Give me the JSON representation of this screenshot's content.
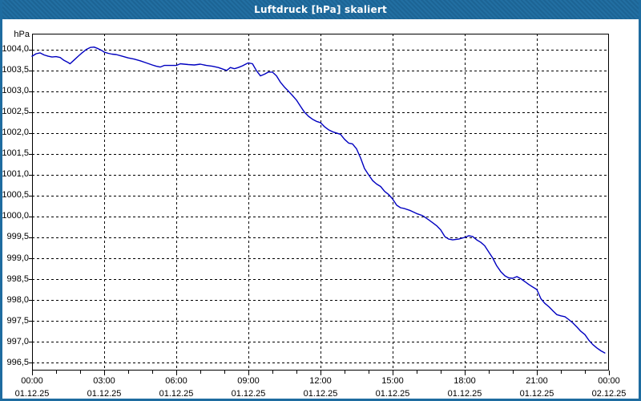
{
  "window": {
    "title": "Luftdruck [hPa] skaliert",
    "titlebar_color": "#1e6ca0",
    "border_color": "#1e6ca0",
    "background": "#ffffff"
  },
  "chart_data": {
    "type": "line",
    "title": "Luftdruck [hPa] skaliert",
    "unit_label": "hPa",
    "grid": "dashed-black",
    "grid_color": "#000000",
    "axis_color": "#000000",
    "x_axis": {
      "range_hours": [
        0,
        24
      ],
      "minor_tick_every_hours": 1,
      "gridlines_at_hours": [
        3,
        6,
        9,
        12,
        15,
        18,
        21
      ],
      "major_ticks": [
        {
          "hour": 0,
          "time": "00:00",
          "date": "01.12.25"
        },
        {
          "hour": 3,
          "time": "03:00",
          "date": "01.12.25"
        },
        {
          "hour": 6,
          "time": "06:00",
          "date": "01.12.25"
        },
        {
          "hour": 9,
          "time": "09:00",
          "date": "01.12.25"
        },
        {
          "hour": 12,
          "time": "12:00",
          "date": "01.12.25"
        },
        {
          "hour": 15,
          "time": "15:00",
          "date": "01.12.25"
        },
        {
          "hour": 18,
          "time": "18:00",
          "date": "01.12.25"
        },
        {
          "hour": 21,
          "time": "21:00",
          "date": "01.12.25"
        },
        {
          "hour": 24,
          "time": "00:00",
          "date": "02.12.25"
        }
      ]
    },
    "y_axis": {
      "min": 996.31,
      "max": 1004.38,
      "ticks": [
        1004.0,
        1003.5,
        1003.0,
        1002.5,
        1002.0,
        1001.5,
        1001.0,
        1000.5,
        1000.0,
        999.5,
        999.0,
        998.5,
        998.0,
        997.5,
        997.0,
        996.5
      ],
      "tick_labels": [
        "1004,0",
        "1003,5",
        "1003,0",
        "1002,5",
        "1002,0",
        "1001,5",
        "1001,0",
        "1000,5",
        "1000,0",
        "999,5",
        "999,0",
        "998,5",
        "998,0",
        "997,5",
        "997,0",
        "996,5"
      ]
    },
    "series": [
      {
        "name": "Luftdruck",
        "color": "#0000c0",
        "points": [
          [
            0.0,
            1003.84
          ],
          [
            0.17,
            1003.9
          ],
          [
            0.33,
            1003.92
          ],
          [
            0.5,
            1003.87
          ],
          [
            0.67,
            1003.84
          ],
          [
            0.83,
            1003.82
          ],
          [
            1.0,
            1003.83
          ],
          [
            1.17,
            1003.81
          ],
          [
            1.33,
            1003.74
          ],
          [
            1.5,
            1003.69
          ],
          [
            1.58,
            1003.66
          ],
          [
            1.75,
            1003.75
          ],
          [
            1.92,
            1003.84
          ],
          [
            2.08,
            1003.92
          ],
          [
            2.25,
            1004.0
          ],
          [
            2.42,
            1004.05
          ],
          [
            2.58,
            1004.06
          ],
          [
            2.75,
            1004.02
          ],
          [
            2.92,
            1003.97
          ],
          [
            3.0,
            1003.94
          ],
          [
            3.17,
            1003.91
          ],
          [
            3.33,
            1003.89
          ],
          [
            3.5,
            1003.88
          ],
          [
            3.75,
            1003.84
          ],
          [
            4.0,
            1003.8
          ],
          [
            4.25,
            1003.77
          ],
          [
            4.5,
            1003.73
          ],
          [
            4.75,
            1003.68
          ],
          [
            5.0,
            1003.63
          ],
          [
            5.17,
            1003.6
          ],
          [
            5.33,
            1003.58
          ],
          [
            5.5,
            1003.62
          ],
          [
            5.75,
            1003.62
          ],
          [
            6.0,
            1003.62
          ],
          [
            6.17,
            1003.66
          ],
          [
            6.33,
            1003.65
          ],
          [
            6.5,
            1003.64
          ],
          [
            6.75,
            1003.63
          ],
          [
            7.0,
            1003.65
          ],
          [
            7.25,
            1003.62
          ],
          [
            7.5,
            1003.6
          ],
          [
            7.75,
            1003.57
          ],
          [
            8.0,
            1003.52
          ],
          [
            8.1,
            1003.5
          ],
          [
            8.25,
            1003.57
          ],
          [
            8.42,
            1003.54
          ],
          [
            8.58,
            1003.57
          ],
          [
            8.75,
            1003.61
          ],
          [
            8.92,
            1003.66
          ],
          [
            9.0,
            1003.68
          ],
          [
            9.17,
            1003.66
          ],
          [
            9.33,
            1003.5
          ],
          [
            9.5,
            1003.37
          ],
          [
            9.67,
            1003.41
          ],
          [
            9.83,
            1003.46
          ],
          [
            10.0,
            1003.46
          ],
          [
            10.17,
            1003.37
          ],
          [
            10.33,
            1003.22
          ],
          [
            10.5,
            1003.1
          ],
          [
            10.67,
            1003.0
          ],
          [
            10.83,
            1002.9
          ],
          [
            11.0,
            1002.79
          ],
          [
            11.17,
            1002.64
          ],
          [
            11.33,
            1002.5
          ],
          [
            11.5,
            1002.4
          ],
          [
            11.67,
            1002.33
          ],
          [
            11.83,
            1002.28
          ],
          [
            12.0,
            1002.25
          ],
          [
            12.17,
            1002.15
          ],
          [
            12.33,
            1002.08
          ],
          [
            12.5,
            1002.03
          ],
          [
            12.67,
            1002.0
          ],
          [
            12.83,
            1001.97
          ],
          [
            13.0,
            1001.85
          ],
          [
            13.17,
            1001.76
          ],
          [
            13.33,
            1001.74
          ],
          [
            13.5,
            1001.62
          ],
          [
            13.67,
            1001.4
          ],
          [
            13.83,
            1001.15
          ],
          [
            14.0,
            1001.0
          ],
          [
            14.17,
            1000.86
          ],
          [
            14.33,
            1000.78
          ],
          [
            14.5,
            1000.72
          ],
          [
            14.67,
            1000.6
          ],
          [
            14.83,
            1000.53
          ],
          [
            15.0,
            1000.42
          ],
          [
            15.17,
            1000.27
          ],
          [
            15.33,
            1000.21
          ],
          [
            15.5,
            1000.19
          ],
          [
            15.75,
            1000.14
          ],
          [
            16.0,
            1000.07
          ],
          [
            16.25,
            1000.02
          ],
          [
            16.5,
            999.92
          ],
          [
            16.67,
            999.85
          ],
          [
            16.83,
            999.78
          ],
          [
            17.0,
            999.68
          ],
          [
            17.17,
            999.52
          ],
          [
            17.33,
            999.46
          ],
          [
            17.5,
            999.44
          ],
          [
            17.75,
            999.46
          ],
          [
            18.0,
            999.5
          ],
          [
            18.17,
            999.54
          ],
          [
            18.33,
            999.52
          ],
          [
            18.5,
            999.44
          ],
          [
            18.67,
            999.38
          ],
          [
            18.83,
            999.3
          ],
          [
            19.0,
            999.15
          ],
          [
            19.17,
            999.0
          ],
          [
            19.33,
            998.82
          ],
          [
            19.5,
            998.68
          ],
          [
            19.67,
            998.58
          ],
          [
            19.83,
            998.53
          ],
          [
            20.0,
            998.52
          ],
          [
            20.17,
            998.56
          ],
          [
            20.33,
            998.51
          ],
          [
            20.5,
            998.44
          ],
          [
            20.67,
            998.37
          ],
          [
            20.83,
            998.31
          ],
          [
            21.0,
            998.25
          ],
          [
            21.17,
            998.03
          ],
          [
            21.33,
            997.92
          ],
          [
            21.5,
            997.84
          ],
          [
            21.67,
            997.74
          ],
          [
            21.83,
            997.65
          ],
          [
            22.0,
            997.62
          ],
          [
            22.17,
            997.6
          ],
          [
            22.33,
            997.53
          ],
          [
            22.5,
            997.45
          ],
          [
            22.67,
            997.35
          ],
          [
            22.83,
            997.25
          ],
          [
            23.0,
            997.17
          ],
          [
            23.17,
            997.03
          ],
          [
            23.33,
            996.93
          ],
          [
            23.5,
            996.85
          ],
          [
            23.67,
            996.78
          ],
          [
            23.83,
            996.73
          ]
        ]
      }
    ]
  }
}
